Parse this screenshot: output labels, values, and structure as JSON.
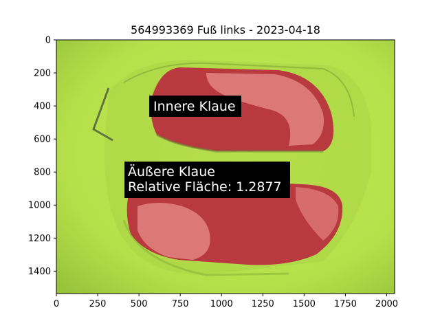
{
  "figure": {
    "title": "564993369 Fuß links - 2023-04-18"
  },
  "axes": {
    "x_ticks": [
      0,
      250,
      500,
      750,
      1000,
      1250,
      1500,
      1750,
      2000
    ],
    "y_ticks": [
      0,
      200,
      400,
      600,
      800,
      1000,
      1200,
      1400
    ],
    "x_range": [
      0,
      2048
    ],
    "y_range": [
      1536,
      0
    ]
  },
  "annotations": [
    {
      "id": "inner",
      "lines": [
        "Innere Klaue"
      ]
    },
    {
      "id": "outer",
      "lines": [
        "Äußere Klaue",
        "Relative Fläche: 1.2877"
      ]
    }
  ],
  "colors": {
    "background_green": "#b5e04a",
    "claw_red": "#b83a3e",
    "claw_pink": "#d96b6b",
    "label_box": "#000000",
    "label_text": "#ffffff"
  }
}
